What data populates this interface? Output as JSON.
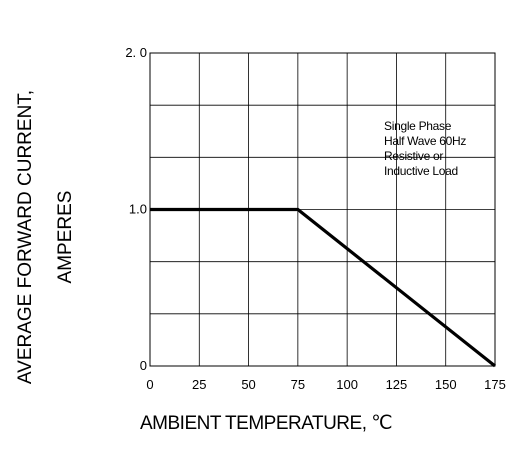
{
  "chart_data": {
    "type": "line",
    "title": "",
    "xlabel": "AMBIENT TEMPERATURE, ℃",
    "ylabel_lines": [
      "AVERAGE FORWARD CURRENT,",
      "AMPERES"
    ],
    "xlim": [
      0,
      175
    ],
    "ylim": [
      0,
      2.0
    ],
    "x_ticks": [
      "0",
      "25",
      "50",
      "75",
      "100",
      "125",
      "150",
      "175"
    ],
    "y_ticks": [
      "0",
      "1.0",
      "2.0"
    ],
    "grid": true,
    "annotation_lines": [
      "Single Phase",
      "Half Wave 60Hz",
      "Resistive or",
      "Inductive Load"
    ],
    "series": [
      {
        "x": [
          0,
          75,
          175
        ],
        "y": [
          1.0,
          1.0,
          0
        ]
      }
    ]
  }
}
